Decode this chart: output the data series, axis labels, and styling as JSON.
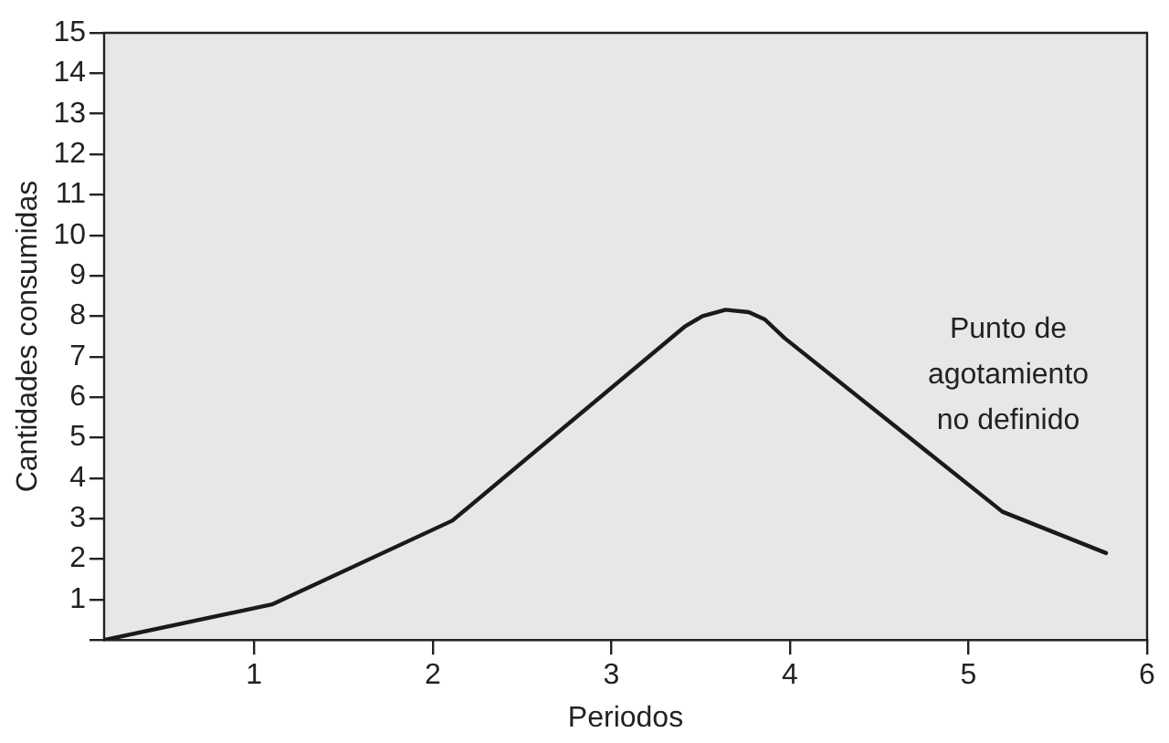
{
  "chart_data": {
    "type": "line",
    "xlabel": "Periodos",
    "ylabel": "Cantidades consumidas",
    "series": [
      {
        "color": "#1a1a1a",
        "x": [
          0.16,
          1.1,
          2.11,
          3.41,
          3.51,
          3.64,
          3.77,
          3.86,
          3.97,
          5.19,
          5.77
        ],
        "values": [
          0,
          0.88,
          2.95,
          7.74,
          8.0,
          8.16,
          8.1,
          7.92,
          7.46,
          3.17,
          2.15
        ]
      }
    ],
    "xlim": [
      0.16,
      6
    ],
    "xticks": [
      1,
      2,
      3,
      4,
      5,
      6
    ],
    "ylim": [
      0,
      15
    ],
    "yticks": [
      {
        "value": 0,
        "label": null
      },
      1,
      2,
      3,
      4,
      5,
      6,
      7,
      8,
      9,
      10,
      11,
      12,
      13,
      14,
      15
    ],
    "grid": false,
    "legend": false,
    "marker": "none",
    "line_style": "solid",
    "annotations": [
      "Punto de agotamiento no definido"
    ]
  }
}
